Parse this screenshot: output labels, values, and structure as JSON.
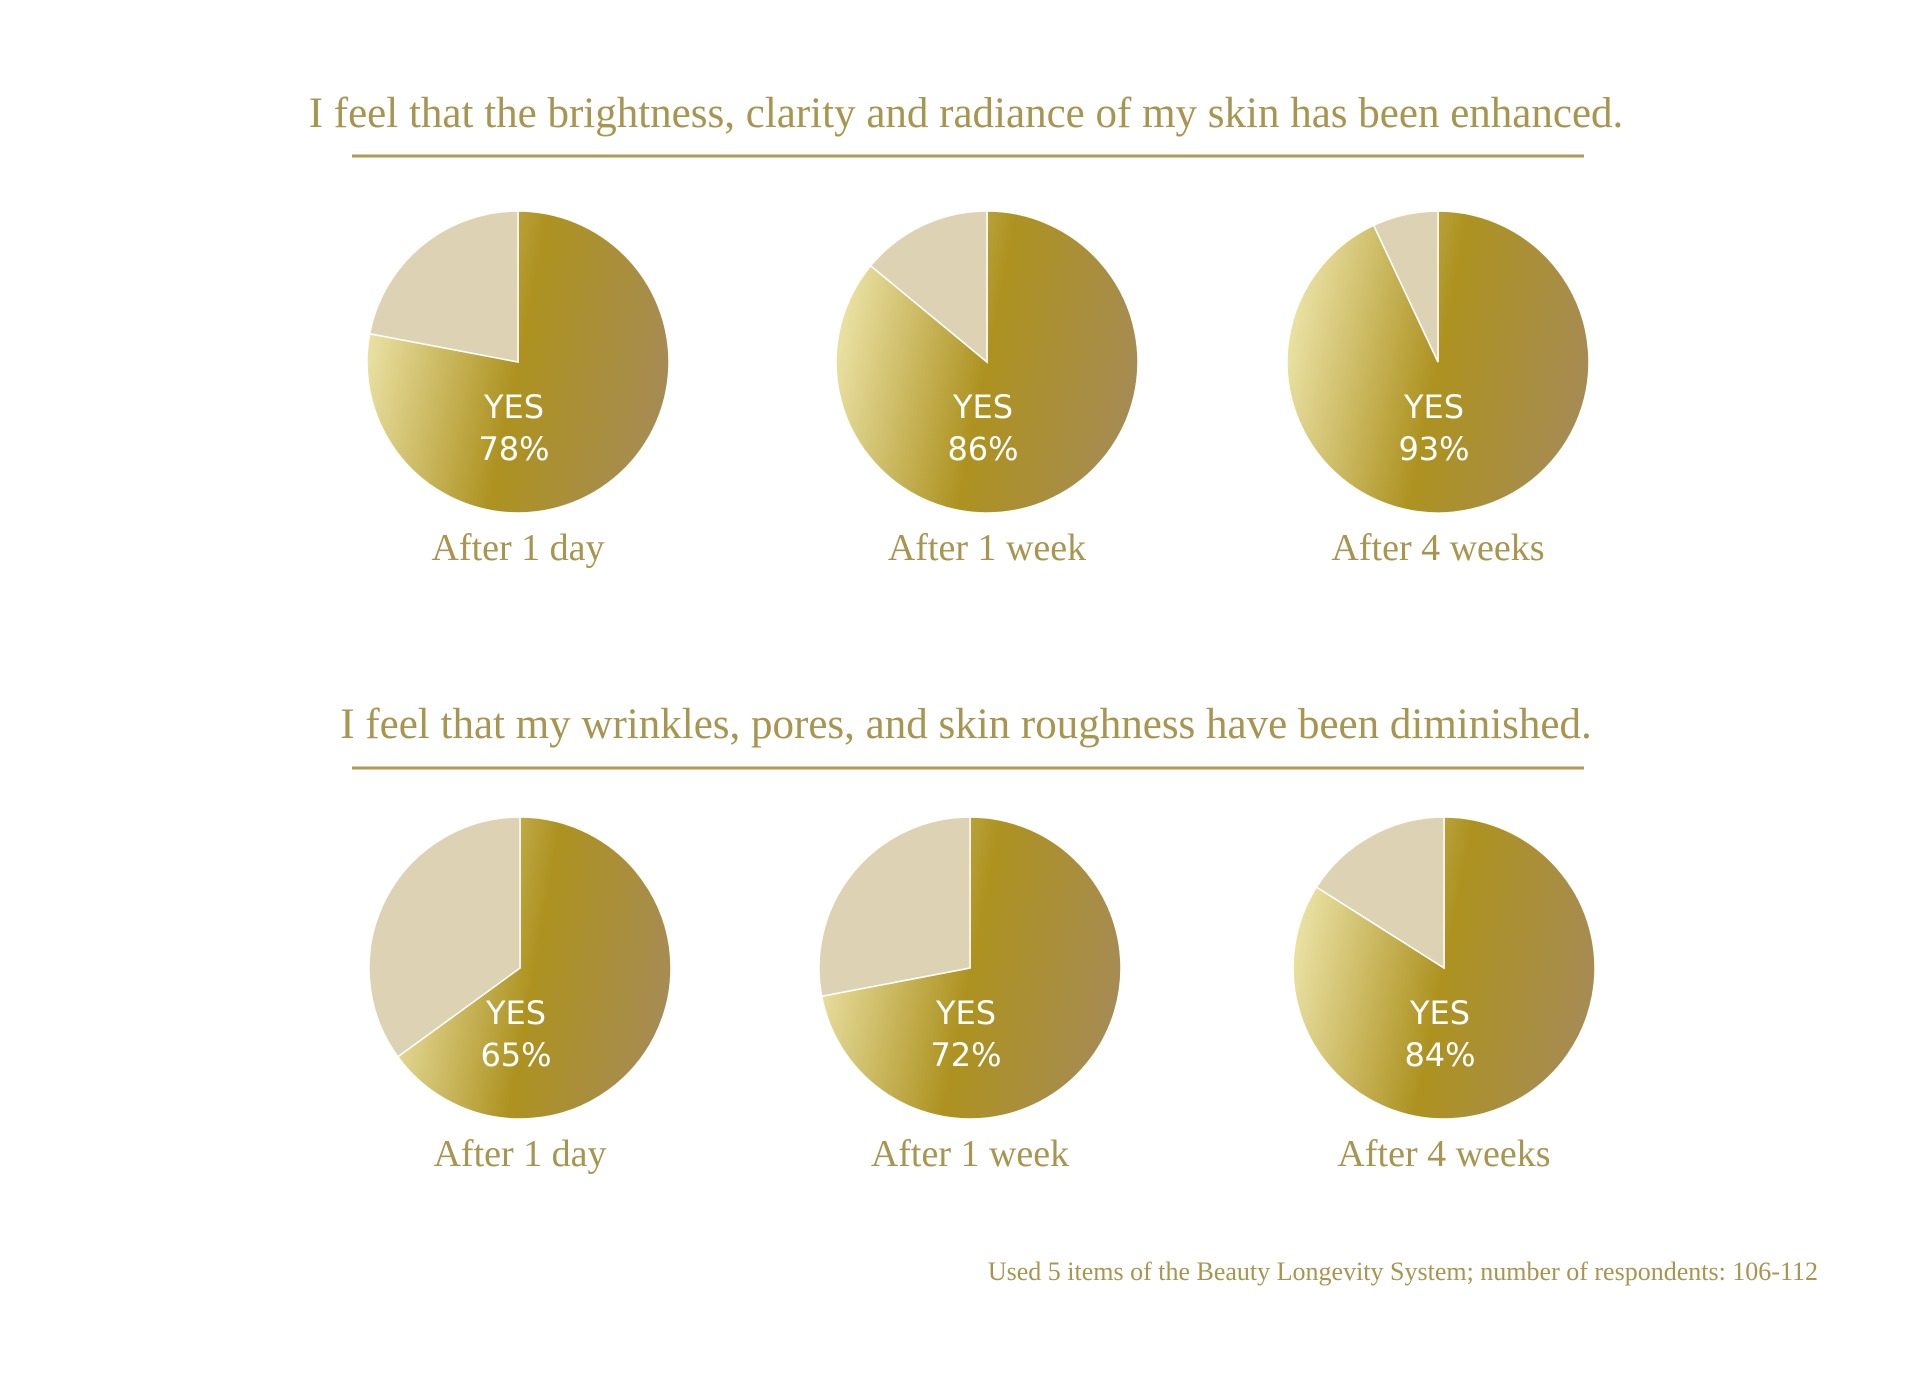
{
  "colors": {
    "text_gold": "#a8954f",
    "rule_gold": "#b09a55",
    "slice_no": "#ddd2b3",
    "slice_yes_light": "#ebe3a7",
    "slice_yes_mid": "#ad9220",
    "slice_yes_dark": "#a68b55",
    "slice_border": "#ffffff",
    "label_white": "#ffffff"
  },
  "footnote": "Used 5 items of the Beauty Longevity System; number of respondents: 106-112",
  "chart_data": [
    {
      "type": "pie",
      "title": "I feel that the brightness, clarity and radiance of my skin has been enhanced.",
      "categories": [
        "After 1 day",
        "After 1 week",
        "After 4 weeks"
      ],
      "series": [
        {
          "name": "YES",
          "values": [
            78,
            86,
            93
          ]
        }
      ],
      "value_labels": [
        "78%",
        "86%",
        "93%"
      ]
    },
    {
      "type": "pie",
      "title": "I feel that my wrinkles, pores, and skin roughness have been diminished.",
      "categories": [
        "After 1 day",
        "After 1 week",
        "After 4 weeks"
      ],
      "series": [
        {
          "name": "YES",
          "values": [
            65,
            72,
            84
          ]
        }
      ],
      "value_labels": [
        "65%",
        "72%",
        "84%"
      ]
    }
  ]
}
